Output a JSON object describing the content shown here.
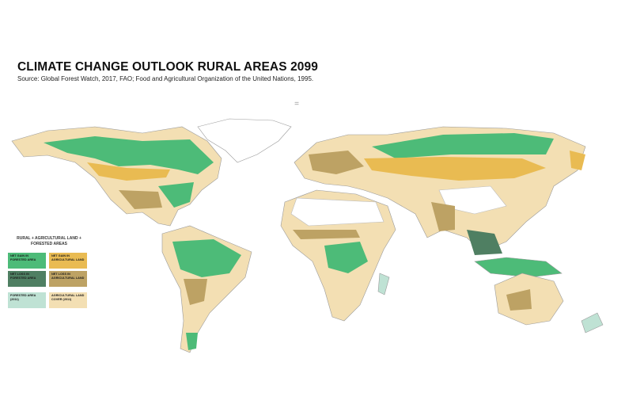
{
  "header": {
    "title": "CLIMATE CHANGE OUTLOOK RURAL AREAS 2099",
    "source": "Source: Global Forest Watch, 2017, FAO;  Food and Agricultural Organization of the United Nations, 1995."
  },
  "legend": {
    "title": "RURAL + AGRICULTURAL LAND + FORESTED AREAS",
    "items": [
      {
        "label": "NET GAIN IN FORESTED AREA",
        "color": "#4dbb78"
      },
      {
        "label": "NET GAIN IN AGRICULTURAL LAND",
        "color": "#e9bb52"
      },
      {
        "label": "NET LOSS IN FORESTED AREA",
        "color": "#4f7f62"
      },
      {
        "label": "NET LOSS IN AGRICULTURAL LAND",
        "color": "#bda264"
      },
      {
        "label": "FORESTED AREA (2011)",
        "color": "#bfe2d4"
      },
      {
        "label": "AGRICULTURAL LAND COVER (2011)",
        "color": "#f3dfb3"
      }
    ]
  }
}
